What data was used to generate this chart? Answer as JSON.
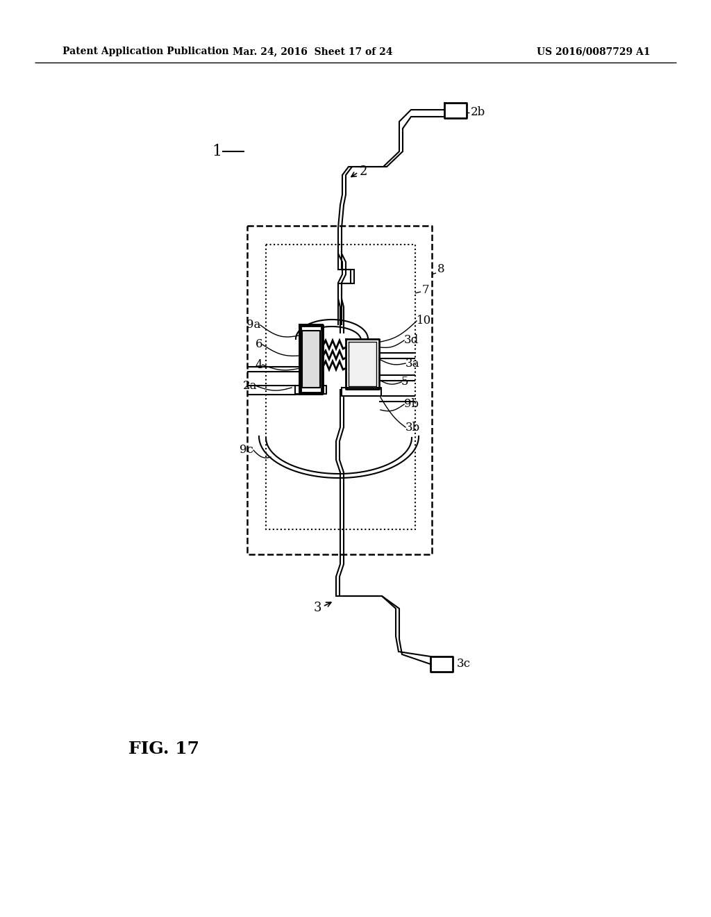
{
  "header_left": "Patent Application Publication",
  "header_mid": "Mar. 24, 2016  Sheet 17 of 24",
  "header_right": "US 2016/0087729 A1",
  "fig_label": "FIG. 17",
  "bg_color": "#ffffff"
}
